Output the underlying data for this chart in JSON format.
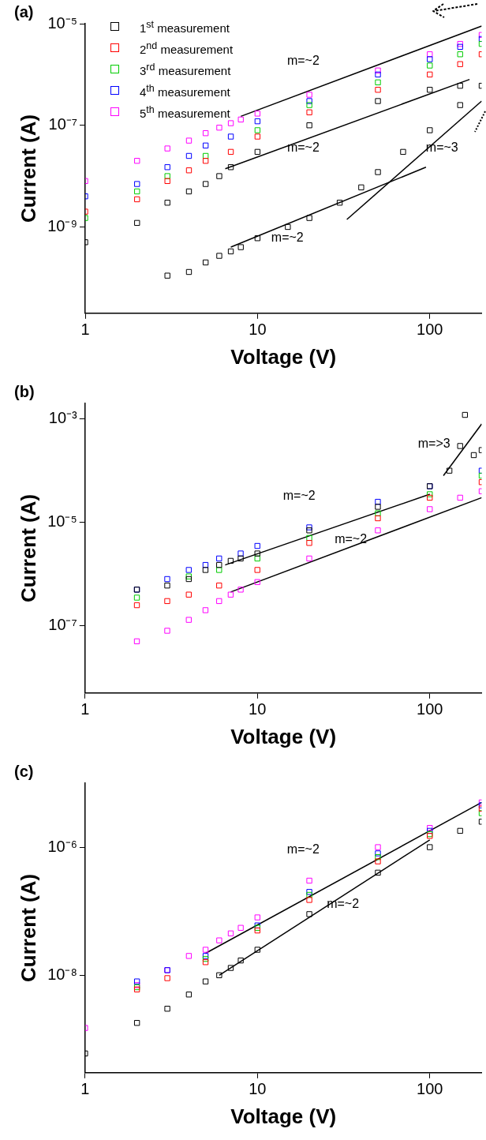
{
  "chart_data": [
    {
      "type": "scatter",
      "title": "(a)",
      "xlabel": "Voltage (V)",
      "ylabel": "Current (A)",
      "log": "xy",
      "grid": false,
      "legend": "top left",
      "marker": "square",
      "xlim": [
        1,
        200
      ],
      "ylim": [
        2e-11,
        1e-05
      ],
      "xticks": [
        1,
        10,
        100
      ],
      "yticks": [
        {
          "value": 1e-09,
          "label": "10⁻⁹"
        },
        {
          "value": 1e-07,
          "label": "10⁻⁷"
        },
        {
          "value": 1e-05,
          "label": "10⁻⁵"
        }
      ],
      "annotations": [
        "m=~2",
        "m=~2",
        "m=~3",
        "m=~2"
      ],
      "series": [
        {
          "name": "1$^{st}$ measurement",
          "color": "#000000",
          "x": [
            1,
            3,
            4,
            5,
            6,
            7,
            8,
            10,
            15,
            20,
            30,
            40,
            50,
            70,
            100,
            150,
            200,
            150,
            100,
            50,
            20,
            10,
            7,
            6,
            5,
            4,
            3,
            2
          ],
          "values": [
            5e-10,
            1.1e-10,
            1.3e-10,
            2e-10,
            2.7e-10,
            3.3e-10,
            4e-10,
            6e-10,
            1e-09,
            1.5e-09,
            3e-09,
            6e-09,
            1.2e-08,
            3e-08,
            8e-08,
            2.5e-07,
            6e-07,
            6e-07,
            5e-07,
            3e-07,
            1e-07,
            3e-08,
            1.5e-08,
            1e-08,
            7e-09,
            5e-09,
            3e-09,
            1.2e-09
          ]
        },
        {
          "name": "2$^{nd}$ measurement",
          "color": "#ff0000",
          "x": [
            1,
            2,
            3,
            4,
            5,
            7,
            10,
            20,
            50,
            100,
            150,
            200
          ],
          "values": [
            2e-09,
            3.5e-09,
            8e-09,
            1.3e-08,
            2e-08,
            3e-08,
            6e-08,
            1.8e-07,
            5e-07,
            1e-06,
            1.6e-06,
            2.5e-06
          ]
        },
        {
          "name": "3$^{rd}$ measurement",
          "color": "#00cc00",
          "x": [
            1,
            2,
            3,
            5,
            10,
            20,
            50,
            100,
            150,
            200
          ],
          "values": [
            1.5e-09,
            5e-09,
            1e-08,
            2.5e-08,
            8e-08,
            2.5e-07,
            7e-07,
            1.5e-06,
            2.5e-06,
            4e-06
          ]
        },
        {
          "name": "4$^{th}$ measurement",
          "color": "#0000ff",
          "x": [
            1,
            2,
            3,
            4,
            5,
            7,
            10,
            20,
            50,
            100,
            150,
            200
          ],
          "values": [
            4e-09,
            7e-09,
            1.5e-08,
            2.5e-08,
            4e-08,
            6e-08,
            1.2e-07,
            3e-07,
            1e-06,
            2e-06,
            3.5e-06,
            5e-06
          ]
        },
        {
          "name": "5$^{th}$ measurement",
          "color": "#ff00ff",
          "x": [
            1,
            2,
            3,
            4,
            5,
            6,
            7,
            8,
            10,
            20,
            50,
            100,
            150,
            200
          ],
          "values": [
            8e-09,
            2e-08,
            3.5e-08,
            5e-08,
            7e-08,
            9e-08,
            1.1e-07,
            1.3e-07,
            1.7e-07,
            4e-07,
            1.2e-06,
            2.5e-06,
            4e-06,
            6e-06
          ]
        },
        {
          "type": "line",
          "marker": "none",
          "color": "#000000",
          "x": [
            8,
            200
          ],
          "values": [
            1.5e-07,
            9e-06
          ]
        },
        {
          "type": "line",
          "marker": "none",
          "color": "#000000",
          "x": [
            6.5,
            170
          ],
          "values": [
            1.4e-08,
            8e-07
          ]
        },
        {
          "type": "line",
          "marker": "none",
          "color": "#000000",
          "x": [
            7,
            95
          ],
          "values": [
            4e-10,
            1.5e-08
          ]
        },
        {
          "type": "line",
          "marker": "none",
          "color": "#000000",
          "x": [
            33,
            200
          ],
          "values": [
            1.4e-09,
            3e-07
          ]
        }
      ]
    },
    {
      "type": "scatter",
      "title": "(b)",
      "xlabel": "Voltage (V)",
      "ylabel": "Current (A)",
      "log": "xy",
      "grid": false,
      "marker": "square",
      "xlim": [
        1,
        200
      ],
      "ylim": [
        5e-09,
        0.002
      ],
      "xticks": [
        1,
        10,
        100
      ],
      "yticks": [
        {
          "value": 1e-07,
          "label": "10⁻⁷"
        },
        {
          "value": 1e-05,
          "label": "10⁻⁵"
        },
        {
          "value": 0.001,
          "label": "10⁻³"
        }
      ],
      "annotations": [
        "m=>3",
        "m=~2",
        "m=~2"
      ],
      "series": [
        {
          "color": "#000000",
          "x": [
            2,
            3,
            4,
            5,
            6,
            7,
            8,
            10,
            20,
            50,
            100,
            130,
            150,
            160,
            180,
            200
          ],
          "values": [
            5e-07,
            6e-07,
            8e-07,
            1.2e-06,
            1.5e-06,
            1.8e-06,
            2e-06,
            2.5e-06,
            7e-06,
            2e-05,
            5e-05,
            0.0001,
            0.0003,
            0.0012,
            0.0002,
            0.00025
          ]
        },
        {
          "color": "#ff0000",
          "x": [
            2,
            3,
            4,
            6,
            10,
            20,
            50,
            100,
            200
          ],
          "values": [
            2.5e-07,
            3e-07,
            4e-07,
            6e-07,
            1.2e-06,
            4e-06,
            1.2e-05,
            3e-05,
            6e-05
          ]
        },
        {
          "color": "#00cc00",
          "x": [
            2,
            4,
            6,
            10,
            20,
            50,
            100,
            200
          ],
          "values": [
            3.5e-07,
            9e-07,
            1.2e-06,
            2e-06,
            5e-06,
            1.5e-05,
            3.5e-05,
            8e-05
          ]
        },
        {
          "color": "#0000ff",
          "x": [
            2,
            3,
            4,
            5,
            6,
            8,
            10,
            20,
            50,
            100,
            200
          ],
          "values": [
            5e-07,
            8e-07,
            1.2e-06,
            1.5e-06,
            2e-06,
            2.5e-06,
            3.5e-06,
            8e-06,
            2.5e-05,
            5e-05,
            0.0001
          ]
        },
        {
          "color": "#ff00ff",
          "x": [
            2,
            3,
            4,
            5,
            6,
            7,
            8,
            10,
            20,
            50,
            100,
            150,
            200
          ],
          "values": [
            5e-08,
            8e-08,
            1.3e-07,
            2e-07,
            3e-07,
            4e-07,
            5e-07,
            7e-07,
            2e-06,
            7e-06,
            1.8e-05,
            3e-05,
            4e-05
          ]
        },
        {
          "type": "line",
          "marker": "none",
          "color": "#000000",
          "x": [
            6.5,
            100
          ],
          "values": [
            1.5e-06,
            3.5e-05
          ]
        },
        {
          "type": "line",
          "marker": "none",
          "color": "#000000",
          "x": [
            120,
            200
          ],
          "values": [
            8e-05,
            0.0008
          ]
        },
        {
          "type": "line",
          "marker": "none",
          "color": "#000000",
          "x": [
            7,
            200
          ],
          "values": [
            4.5e-07,
            3e-05
          ]
        }
      ]
    },
    {
      "type": "scatter",
      "title": "(c)",
      "xlabel": "Voltage (V)",
      "ylabel": "Current (A)",
      "log": "xy",
      "grid": false,
      "marker": "square",
      "xlim": [
        1,
        200
      ],
      "ylim": [
        3e-10,
        1e-05
      ],
      "xticks": [
        1,
        10,
        100
      ],
      "yticks": [
        {
          "value": 1e-08,
          "label": "10⁻⁸"
        },
        {
          "value": 1e-06,
          "label": "10⁻⁶"
        }
      ],
      "annotations": [
        "m=~2",
        "m=~2"
      ],
      "series": [
        {
          "color": "#000000",
          "x": [
            1,
            2,
            3,
            4,
            5,
            6,
            7,
            8,
            10,
            20,
            50,
            100,
            150,
            200
          ],
          "values": [
            6e-10,
            1.8e-09,
            3e-09,
            5e-09,
            8e-09,
            1e-08,
            1.3e-08,
            1.7e-08,
            2.5e-08,
            9e-08,
            4e-07,
            1e-06,
            1.8e-06,
            2.5e-06
          ]
        },
        {
          "color": "#ff0000",
          "x": [
            2,
            3,
            5,
            10,
            20,
            50,
            100,
            200
          ],
          "values": [
            6e-09,
            9e-09,
            1.6e-08,
            5e-08,
            1.5e-07,
            6e-07,
            1.5e-06,
            4e-06
          ]
        },
        {
          "color": "#00cc00",
          "x": [
            2,
            5,
            10,
            20,
            50,
            100,
            200
          ],
          "values": [
            6.5e-09,
            1.8e-08,
            5.5e-08,
            1.8e-07,
            7e-07,
            1.6e-06,
            3.4e-06
          ]
        },
        {
          "color": "#0000ff",
          "x": [
            2,
            3,
            5,
            10,
            20,
            50,
            100,
            200
          ],
          "values": [
            8e-09,
            1.2e-08,
            2e-08,
            6e-08,
            2e-07,
            8e-07,
            1.8e-06,
            4.5e-06
          ]
        },
        {
          "color": "#ff00ff",
          "x": [
            1,
            2,
            3,
            4,
            5,
            6,
            7,
            8,
            10,
            20,
            50,
            100,
            200
          ],
          "values": [
            1.5e-09,
            7e-09,
            1.2e-08,
            2e-08,
            2.5e-08,
            3.5e-08,
            4.5e-08,
            5.5e-08,
            8e-08,
            3e-07,
            1e-06,
            2e-06,
            5e-06
          ]
        },
        {
          "type": "line",
          "marker": "none",
          "color": "#000000",
          "x": [
            5,
            200
          ],
          "values": [
            2.2e-08,
            5e-06
          ]
        },
        {
          "type": "line",
          "marker": "none",
          "color": "#000000",
          "x": [
            6,
            100
          ],
          "values": [
            1e-08,
            1.3e-06
          ]
        }
      ]
    }
  ]
}
